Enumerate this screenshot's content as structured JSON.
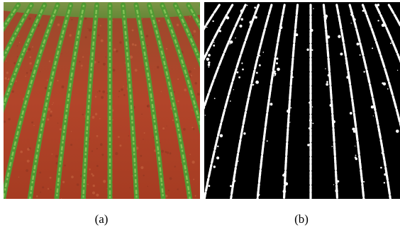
{
  "figure": {
    "panels": [
      {
        "caption": "(a)",
        "image": "crop-field-photo",
        "colors": {
          "soil": "#b2452a",
          "soil_dark": "#8c3420",
          "crop": "#5aa33a",
          "crop_light": "#8cc65a",
          "far_field": "#6f9a3e"
        }
      },
      {
        "caption": "(b)",
        "image": "binary-segmentation-mask",
        "colors": {
          "background": "#000000",
          "foreground": "#ffffff"
        }
      }
    ]
  }
}
